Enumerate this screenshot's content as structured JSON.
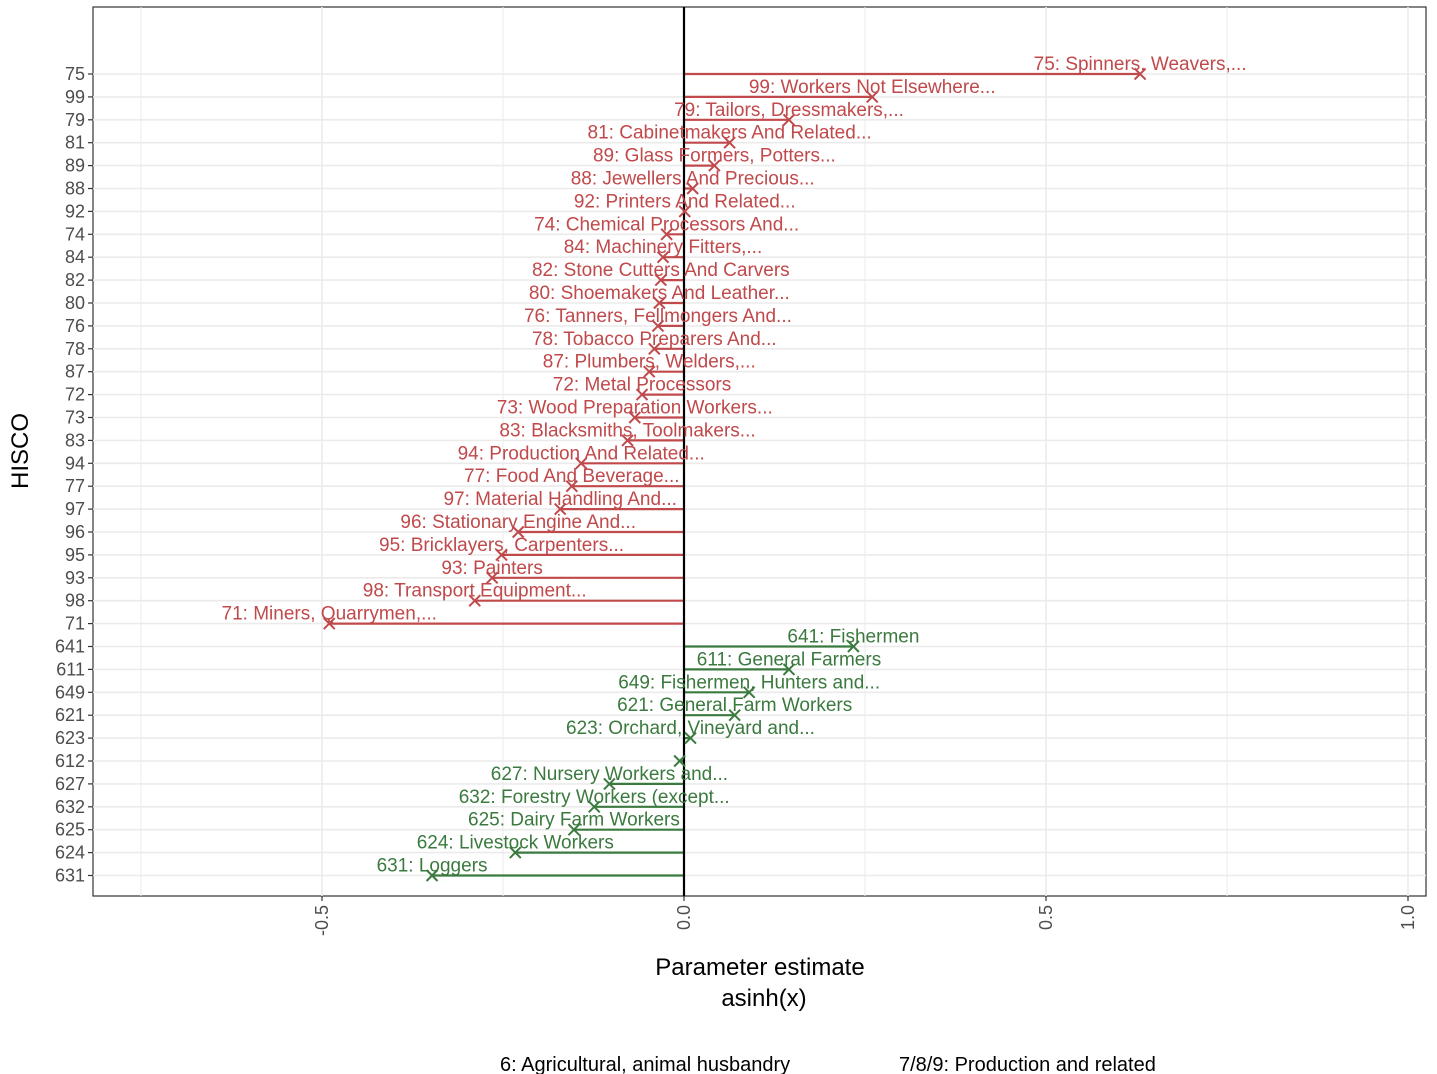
{
  "chart_data": {
    "type": "bar",
    "orientation": "horizontal",
    "xlabel_line1": "Parameter estimate",
    "xlabel_line2": "asinh(x)",
    "ylabel": "HISCO",
    "xlim": [
      -0.81,
      1.0
    ],
    "x_ticks": [
      -0.5,
      0.0,
      0.5,
      1.0
    ],
    "x_tick_labels": [
      "-0.5",
      "0.0",
      "0.5",
      "1.0"
    ],
    "grid": true,
    "colors": {
      "production": "#c0494b",
      "agricultural": "#3b7a3f"
    },
    "legend": [
      {
        "label": "6: Agricultural, animal husbandry",
        "group": "agricultural"
      },
      {
        "label": "7/8/9: Production and related",
        "group": "production"
      }
    ],
    "rows": [
      {
        "code": "75",
        "label": "75: Spinners, Weavers,...",
        "value": 0.63,
        "group": "production"
      },
      {
        "code": "99",
        "label": "99: Workers Not Elsewhere...",
        "value": 0.26,
        "group": "production"
      },
      {
        "code": "79",
        "label": "79: Tailors, Dressmakers,...",
        "value": 0.145,
        "group": "production"
      },
      {
        "code": "81",
        "label": "81: Cabinetmakers And Related...",
        "value": 0.063,
        "group": "production"
      },
      {
        "code": "89",
        "label": "89: Glass Formers, Potters...",
        "value": 0.042,
        "group": "production"
      },
      {
        "code": "88",
        "label": "88: Jewellers And Precious...",
        "value": 0.012,
        "group": "production"
      },
      {
        "code": "92",
        "label": "92: Printers And Related...",
        "value": 0.001,
        "group": "production"
      },
      {
        "code": "74",
        "label": "74: Chemical Processors And...",
        "value": -0.024,
        "group": "production"
      },
      {
        "code": "84",
        "label": "84: Machinery Fitters,...",
        "value": -0.029,
        "group": "production"
      },
      {
        "code": "82",
        "label": "82: Stone Cutters And Carvers",
        "value": -0.032,
        "group": "production"
      },
      {
        "code": "80",
        "label": "80: Shoemakers And Leather...",
        "value": -0.034,
        "group": "production"
      },
      {
        "code": "76",
        "label": "76: Tanners, Fellmongers And...",
        "value": -0.036,
        "group": "production"
      },
      {
        "code": "78",
        "label": "78: Tobacco Preparers And...",
        "value": -0.041,
        "group": "production"
      },
      {
        "code": "87",
        "label": "87: Plumbers, Welders,...",
        "value": -0.048,
        "group": "production"
      },
      {
        "code": "72",
        "label": "72: Metal Processors",
        "value": -0.058,
        "group": "production"
      },
      {
        "code": "73",
        "label": "73: Wood Preparation Workers...",
        "value": -0.068,
        "group": "production"
      },
      {
        "code": "83",
        "label": "83: Blacksmiths, Toolmakers...",
        "value": -0.078,
        "group": "production"
      },
      {
        "code": "94",
        "label": "94: Production And Related...",
        "value": -0.142,
        "group": "production"
      },
      {
        "code": "77",
        "label": "77: Food And Beverage...",
        "value": -0.155,
        "group": "production"
      },
      {
        "code": "97",
        "label": "97: Material Handling And...",
        "value": -0.171,
        "group": "production"
      },
      {
        "code": "96",
        "label": "96: Stationary Engine And...",
        "value": -0.229,
        "group": "production"
      },
      {
        "code": "95",
        "label": "95: Bricklayers, Carpenters...",
        "value": -0.252,
        "group": "production"
      },
      {
        "code": "93",
        "label": "93: Painters",
        "value": -0.265,
        "group": "production"
      },
      {
        "code": "98",
        "label": "98: Transport Equipment...",
        "value": -0.289,
        "group": "production"
      },
      {
        "code": "71",
        "label": "71: Miners, Quarrymen,...",
        "value": -0.49,
        "group": "production"
      },
      {
        "code": "641",
        "label": "641: Fishermen",
        "value": 0.234,
        "group": "agricultural"
      },
      {
        "code": "611",
        "label": "611: General Farmers",
        "value": 0.145,
        "group": "agricultural"
      },
      {
        "code": "649",
        "label": "649: Fishermen, Hunters and...",
        "value": 0.09,
        "group": "agricultural"
      },
      {
        "code": "621",
        "label": "621: General Farm Workers",
        "value": 0.07,
        "group": "agricultural"
      },
      {
        "code": "623",
        "label": "623: Orchard, Vineyard and...",
        "value": 0.009,
        "group": "agricultural"
      },
      {
        "code": "612",
        "label": "",
        "value": -0.006,
        "group": "agricultural"
      },
      {
        "code": "627",
        "label": "627: Nursery Workers and...",
        "value": -0.103,
        "group": "agricultural"
      },
      {
        "code": "632",
        "label": "632: Forestry Workers (except...",
        "value": -0.124,
        "group": "agricultural"
      },
      {
        "code": "625",
        "label": "625: Dairy Farm Workers",
        "value": -0.152,
        "group": "agricultural"
      },
      {
        "code": "624",
        "label": "624: Livestock Workers",
        "value": -0.233,
        "group": "agricultural"
      },
      {
        "code": "631",
        "label": "631: Loggers",
        "value": -0.348,
        "group": "agricultural"
      }
    ]
  }
}
